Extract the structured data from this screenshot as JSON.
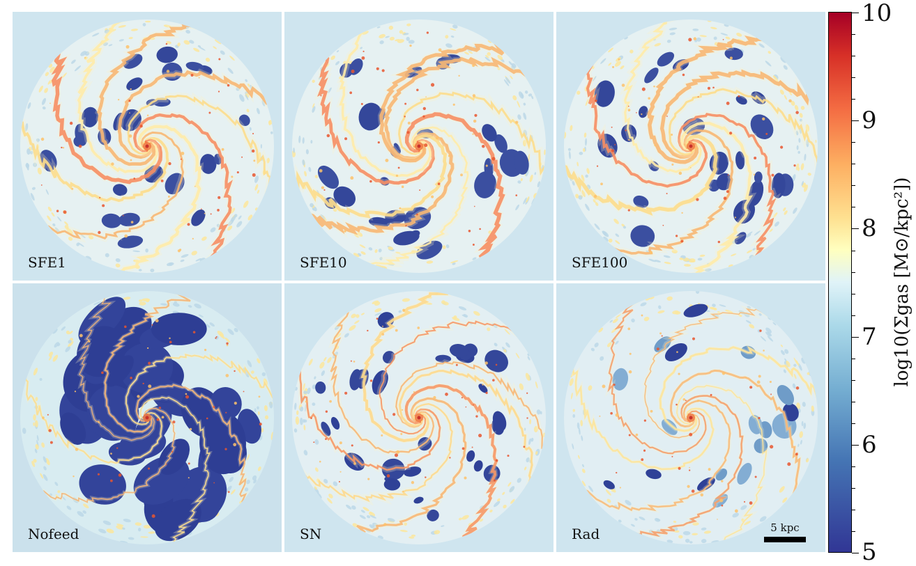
{
  "panels": [
    {
      "label": "SFE1",
      "variant": "dense-orange"
    },
    {
      "label": "SFE10",
      "variant": "dense-orange"
    },
    {
      "label": "SFE100",
      "variant": "dense-orange"
    },
    {
      "label": "Nofeed",
      "variant": "deep-blue"
    },
    {
      "label": "SN",
      "variant": "mixed"
    },
    {
      "label": "Rad",
      "variant": "light"
    }
  ],
  "scalebar": {
    "label": "5 kpc"
  },
  "colorbar": {
    "label": "log10(Σgas [M⊙/kpc²])",
    "ticks": [
      "5",
      "6",
      "7",
      "8",
      "9",
      "10"
    ],
    "colormap": "RdYlBu_r",
    "colors": {
      "low": "#313695",
      "mid": "#ffffbf",
      "high": "#a50026"
    }
  }
}
